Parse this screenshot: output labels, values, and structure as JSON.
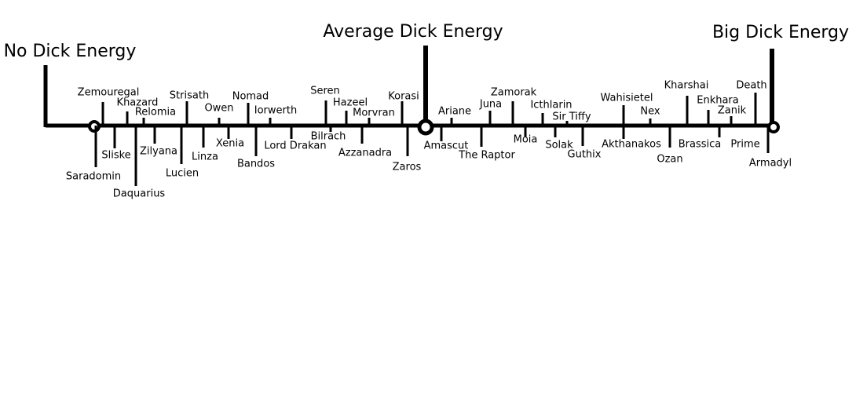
{
  "headers": [
    "No Dick Energy",
    "Average Dick Energy",
    "Big Dick Energy"
  ],
  "labels": [
    "Zemouregal",
    "Khazard",
    "Relomia",
    "Strisath",
    "Owen",
    "Nomad",
    "Iorwerth",
    "Seren",
    "Hazeel",
    "Morvran",
    "Korasi",
    "Ariane",
    "Juna",
    "Zamorak",
    "Icthlarin",
    "Sir Tiffy",
    "Wahisietel",
    "Nex",
    "Kharshai",
    "Enkhara",
    "Zanik",
    "Death",
    "Saradomin",
    "Sliske",
    "Daquarius",
    "Zilyana",
    "Lucien",
    "Linza",
    "Xenia",
    "Bandos",
    "Lord Drakan",
    "Bilrach",
    "Azzanadra",
    "Zaros",
    "Amascut",
    "The Raptor",
    "Moia",
    "Solak",
    "Guthix",
    "Akthanakos",
    "Ozan",
    "Brassica",
    "Prime",
    "Armadyl"
  ]
}
